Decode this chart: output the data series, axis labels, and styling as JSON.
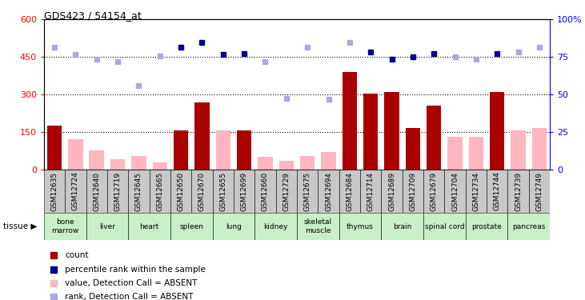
{
  "title": "GDS423 / 54154_at",
  "samples": [
    "GSM12635",
    "GSM12724",
    "GSM12640",
    "GSM12719",
    "GSM12645",
    "GSM12665",
    "GSM12650",
    "GSM12670",
    "GSM12655",
    "GSM12699",
    "GSM12660",
    "GSM12729",
    "GSM12675",
    "GSM12694",
    "GSM12684",
    "GSM12714",
    "GSM12689",
    "GSM12709",
    "GSM12679",
    "GSM12704",
    "GSM12734",
    "GSM12744",
    "GSM12739",
    "GSM12749"
  ],
  "count_values": [
    175,
    0,
    0,
    0,
    0,
    0,
    155,
    270,
    0,
    155,
    0,
    0,
    0,
    0,
    390,
    305,
    310,
    165,
    255,
    0,
    0,
    310,
    0,
    0
  ],
  "count_absent": [
    0,
    120,
    75,
    40,
    55,
    30,
    0,
    0,
    155,
    0,
    50,
    35,
    55,
    70,
    0,
    0,
    0,
    0,
    0,
    130,
    130,
    0,
    155,
    165
  ],
  "rank_present": [
    null,
    null,
    null,
    null,
    null,
    null,
    490,
    510,
    460,
    465,
    null,
    null,
    null,
    null,
    null,
    470,
    440,
    450,
    465,
    null,
    null,
    465,
    null,
    null
  ],
  "rank_absent": [
    490,
    462,
    440,
    432,
    335,
    455,
    null,
    null,
    null,
    null,
    432,
    285,
    490,
    280,
    510,
    null,
    null,
    null,
    null,
    450,
    440,
    null,
    470,
    490
  ],
  "tissue_names": [
    "bone\nmarrow",
    "liver",
    "heart",
    "spleen",
    "lung",
    "kidney",
    "skeletal\nmuscle",
    "thymus",
    "brain",
    "spinal cord",
    "prostate",
    "pancreas"
  ],
  "tissue_ranges": [
    [
      0,
      2
    ],
    [
      2,
      4
    ],
    [
      4,
      6
    ],
    [
      6,
      8
    ],
    [
      8,
      10
    ],
    [
      10,
      12
    ],
    [
      12,
      14
    ],
    [
      14,
      16
    ],
    [
      16,
      18
    ],
    [
      18,
      20
    ],
    [
      20,
      22
    ],
    [
      22,
      24
    ]
  ],
  "ylim_left": [
    0,
    600
  ],
  "yticks_left": [
    0,
    150,
    300,
    450,
    600
  ],
  "yticks_right": [
    0,
    25,
    50,
    75,
    100
  ],
  "color_count": "#aa0000",
  "color_absent_val": "#FFB6C1",
  "color_rank_present": "#00008B",
  "color_rank_absent": "#aaaadd",
  "bg_sample": "#c8c8c8",
  "bg_tissue_light": "#c8f0c8",
  "bg_tissue_dark": "#66dd66"
}
